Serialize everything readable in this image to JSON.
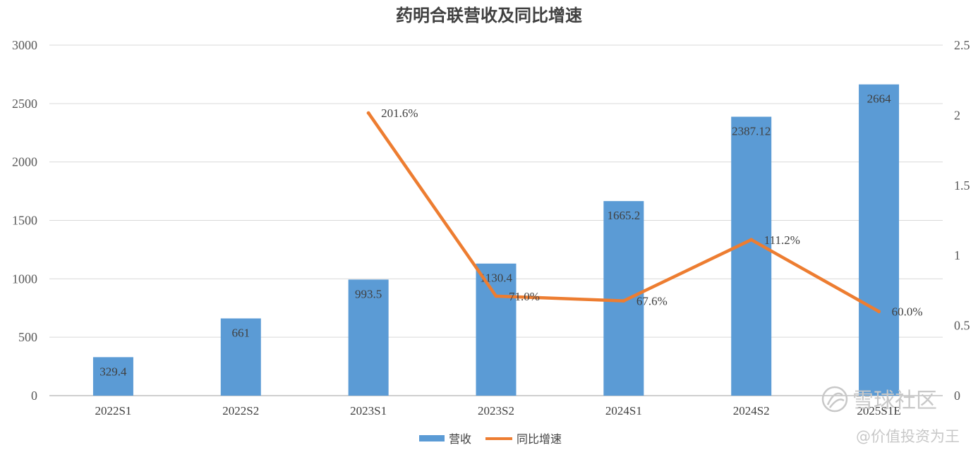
{
  "chart_data": {
    "type": "bar",
    "title": "药明合联营收及同比增速",
    "categories": [
      "2022S1",
      "2022S2",
      "2023S1",
      "2023S2",
      "2024S1",
      "2024S2",
      "2025S1E"
    ],
    "series": [
      {
        "name": "营收",
        "type": "bar",
        "axis": "left",
        "color": "#5B9BD5",
        "values": [
          329.4,
          661,
          993.5,
          1130.4,
          1665.2,
          2387.12,
          2664
        ],
        "labels": [
          "329.4",
          "661",
          "993.5",
          "1130.4",
          "1665.2",
          "2387.12",
          "2664"
        ]
      },
      {
        "name": "同比增速",
        "type": "line",
        "axis": "right",
        "color": "#ED7D31",
        "values": [
          null,
          null,
          2.016,
          0.71,
          0.676,
          1.112,
          0.6
        ],
        "labels": [
          null,
          null,
          "201.6%",
          "71.0%",
          "67.6%",
          "111.2%",
          "60.0%"
        ]
      }
    ],
    "left_axis": {
      "ylim": [
        0,
        3000
      ],
      "ticks": [
        "0",
        "500",
        "1000",
        "1500",
        "2000",
        "2500",
        "3000"
      ]
    },
    "right_axis": {
      "ylim": [
        0,
        2.5
      ],
      "ticks": [
        "0",
        "0.5",
        "1",
        "1.5",
        "2",
        "2.5"
      ]
    },
    "grid": true,
    "legend_position": "bottom"
  },
  "watermark": {
    "brand": "雪球社区",
    "handle": "@价值投资为王"
  }
}
